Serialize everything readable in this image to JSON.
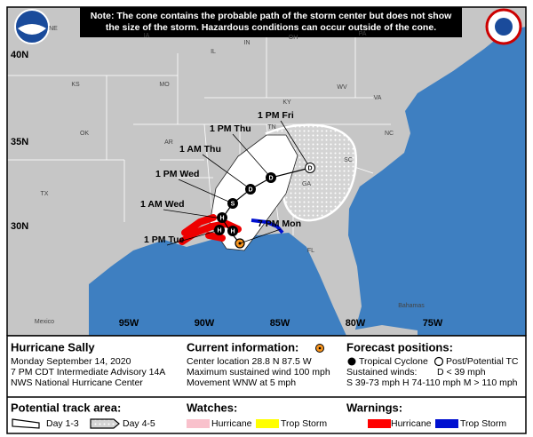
{
  "note": {
    "lines": [
      "Note: The cone contains the probable path of the storm center but does not show",
      "the size of the storm. Hazardous conditions can occur outside of the cone."
    ]
  },
  "map": {
    "lat_labels": [
      "40N",
      "35N",
      "30N"
    ],
    "lon_labels": [
      "95W",
      "90W",
      "85W",
      "80W",
      "75W"
    ],
    "places": [
      "NE",
      "IA",
      "IL",
      "IN",
      "OH",
      "PA",
      "KS",
      "MO",
      "KY",
      "WV",
      "VA",
      "OK",
      "AR",
      "TN",
      "NC",
      "SC",
      "TX",
      "GA",
      "FL",
      "Mexico",
      "Bahamas"
    ],
    "time_labels": [
      "1 PM Fri",
      "1 PM Thu",
      "1 AM Thu",
      "1 PM Wed",
      "1 AM Wed",
      "1 PM Tue",
      "7 PM Mon"
    ],
    "points": [
      "H",
      "H",
      "H",
      "S",
      "D",
      "D",
      "D"
    ]
  },
  "legend": {
    "storm": {
      "name": "Hurricane Sally",
      "lines": [
        "Monday September 14, 2020",
        "7 PM CDT Intermediate Advisory 14A",
        "NWS National Hurricane Center"
      ]
    },
    "current": {
      "title": "Current information:",
      "lines": [
        "Center location 28.8 N 87.5 W",
        "Maximum sustained wind 100 mph",
        "Movement WNW at 5 mph"
      ]
    },
    "forecast": {
      "title": "Forecast positions:",
      "tropical": "Tropical Cyclone",
      "post": "Post/Potential TC",
      "winds_label": "Sustained winds:",
      "winds_d": "D < 39 mph",
      "winds_line": "S 39-73 mph  H 74-110 mph  M > 110 mph"
    },
    "track": {
      "title": "Potential track area:",
      "day13": "Day 1-3",
      "day45": "Day 4-5"
    },
    "watches": {
      "title": "Watches:",
      "hurricane": "Hurricane",
      "trop": "Trop Storm"
    },
    "warnings": {
      "title": "Warnings:",
      "hurricane": "Hurricane",
      "trop": "Trop Storm"
    }
  }
}
